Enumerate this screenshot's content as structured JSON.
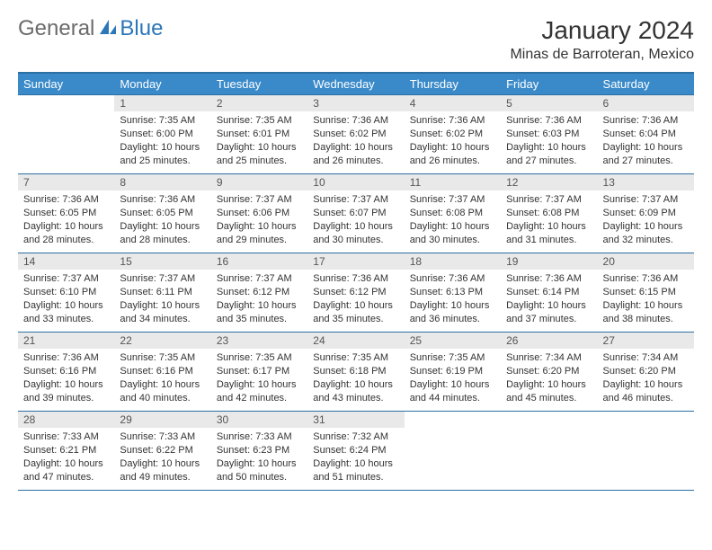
{
  "logo": {
    "general": "General",
    "blue": "Blue"
  },
  "title": "January 2024",
  "location": "Minas de Barroteran, Mexico",
  "colors": {
    "header_bg": "#3a8ac9",
    "header_border": "#2b6fa3",
    "daynum_bg": "#e9e9e9",
    "text": "#333333"
  },
  "weekdays": [
    "Sunday",
    "Monday",
    "Tuesday",
    "Wednesday",
    "Thursday",
    "Friday",
    "Saturday"
  ],
  "weeks": [
    [
      null,
      {
        "n": "1",
        "sr": "Sunrise: 7:35 AM",
        "ss": "Sunset: 6:00 PM",
        "d1": "Daylight: 10 hours",
        "d2": "and 25 minutes."
      },
      {
        "n": "2",
        "sr": "Sunrise: 7:35 AM",
        "ss": "Sunset: 6:01 PM",
        "d1": "Daylight: 10 hours",
        "d2": "and 25 minutes."
      },
      {
        "n": "3",
        "sr": "Sunrise: 7:36 AM",
        "ss": "Sunset: 6:02 PM",
        "d1": "Daylight: 10 hours",
        "d2": "and 26 minutes."
      },
      {
        "n": "4",
        "sr": "Sunrise: 7:36 AM",
        "ss": "Sunset: 6:02 PM",
        "d1": "Daylight: 10 hours",
        "d2": "and 26 minutes."
      },
      {
        "n": "5",
        "sr": "Sunrise: 7:36 AM",
        "ss": "Sunset: 6:03 PM",
        "d1": "Daylight: 10 hours",
        "d2": "and 27 minutes."
      },
      {
        "n": "6",
        "sr": "Sunrise: 7:36 AM",
        "ss": "Sunset: 6:04 PM",
        "d1": "Daylight: 10 hours",
        "d2": "and 27 minutes."
      }
    ],
    [
      {
        "n": "7",
        "sr": "Sunrise: 7:36 AM",
        "ss": "Sunset: 6:05 PM",
        "d1": "Daylight: 10 hours",
        "d2": "and 28 minutes."
      },
      {
        "n": "8",
        "sr": "Sunrise: 7:36 AM",
        "ss": "Sunset: 6:05 PM",
        "d1": "Daylight: 10 hours",
        "d2": "and 28 minutes."
      },
      {
        "n": "9",
        "sr": "Sunrise: 7:37 AM",
        "ss": "Sunset: 6:06 PM",
        "d1": "Daylight: 10 hours",
        "d2": "and 29 minutes."
      },
      {
        "n": "10",
        "sr": "Sunrise: 7:37 AM",
        "ss": "Sunset: 6:07 PM",
        "d1": "Daylight: 10 hours",
        "d2": "and 30 minutes."
      },
      {
        "n": "11",
        "sr": "Sunrise: 7:37 AM",
        "ss": "Sunset: 6:08 PM",
        "d1": "Daylight: 10 hours",
        "d2": "and 30 minutes."
      },
      {
        "n": "12",
        "sr": "Sunrise: 7:37 AM",
        "ss": "Sunset: 6:08 PM",
        "d1": "Daylight: 10 hours",
        "d2": "and 31 minutes."
      },
      {
        "n": "13",
        "sr": "Sunrise: 7:37 AM",
        "ss": "Sunset: 6:09 PM",
        "d1": "Daylight: 10 hours",
        "d2": "and 32 minutes."
      }
    ],
    [
      {
        "n": "14",
        "sr": "Sunrise: 7:37 AM",
        "ss": "Sunset: 6:10 PM",
        "d1": "Daylight: 10 hours",
        "d2": "and 33 minutes."
      },
      {
        "n": "15",
        "sr": "Sunrise: 7:37 AM",
        "ss": "Sunset: 6:11 PM",
        "d1": "Daylight: 10 hours",
        "d2": "and 34 minutes."
      },
      {
        "n": "16",
        "sr": "Sunrise: 7:37 AM",
        "ss": "Sunset: 6:12 PM",
        "d1": "Daylight: 10 hours",
        "d2": "and 35 minutes."
      },
      {
        "n": "17",
        "sr": "Sunrise: 7:36 AM",
        "ss": "Sunset: 6:12 PM",
        "d1": "Daylight: 10 hours",
        "d2": "and 35 minutes."
      },
      {
        "n": "18",
        "sr": "Sunrise: 7:36 AM",
        "ss": "Sunset: 6:13 PM",
        "d1": "Daylight: 10 hours",
        "d2": "and 36 minutes."
      },
      {
        "n": "19",
        "sr": "Sunrise: 7:36 AM",
        "ss": "Sunset: 6:14 PM",
        "d1": "Daylight: 10 hours",
        "d2": "and 37 minutes."
      },
      {
        "n": "20",
        "sr": "Sunrise: 7:36 AM",
        "ss": "Sunset: 6:15 PM",
        "d1": "Daylight: 10 hours",
        "d2": "and 38 minutes."
      }
    ],
    [
      {
        "n": "21",
        "sr": "Sunrise: 7:36 AM",
        "ss": "Sunset: 6:16 PM",
        "d1": "Daylight: 10 hours",
        "d2": "and 39 minutes."
      },
      {
        "n": "22",
        "sr": "Sunrise: 7:35 AM",
        "ss": "Sunset: 6:16 PM",
        "d1": "Daylight: 10 hours",
        "d2": "and 40 minutes."
      },
      {
        "n": "23",
        "sr": "Sunrise: 7:35 AM",
        "ss": "Sunset: 6:17 PM",
        "d1": "Daylight: 10 hours",
        "d2": "and 42 minutes."
      },
      {
        "n": "24",
        "sr": "Sunrise: 7:35 AM",
        "ss": "Sunset: 6:18 PM",
        "d1": "Daylight: 10 hours",
        "d2": "and 43 minutes."
      },
      {
        "n": "25",
        "sr": "Sunrise: 7:35 AM",
        "ss": "Sunset: 6:19 PM",
        "d1": "Daylight: 10 hours",
        "d2": "and 44 minutes."
      },
      {
        "n": "26",
        "sr": "Sunrise: 7:34 AM",
        "ss": "Sunset: 6:20 PM",
        "d1": "Daylight: 10 hours",
        "d2": "and 45 minutes."
      },
      {
        "n": "27",
        "sr": "Sunrise: 7:34 AM",
        "ss": "Sunset: 6:20 PM",
        "d1": "Daylight: 10 hours",
        "d2": "and 46 minutes."
      }
    ],
    [
      {
        "n": "28",
        "sr": "Sunrise: 7:33 AM",
        "ss": "Sunset: 6:21 PM",
        "d1": "Daylight: 10 hours",
        "d2": "and 47 minutes."
      },
      {
        "n": "29",
        "sr": "Sunrise: 7:33 AM",
        "ss": "Sunset: 6:22 PM",
        "d1": "Daylight: 10 hours",
        "d2": "and 49 minutes."
      },
      {
        "n": "30",
        "sr": "Sunrise: 7:33 AM",
        "ss": "Sunset: 6:23 PM",
        "d1": "Daylight: 10 hours",
        "d2": "and 50 minutes."
      },
      {
        "n": "31",
        "sr": "Sunrise: 7:32 AM",
        "ss": "Sunset: 6:24 PM",
        "d1": "Daylight: 10 hours",
        "d2": "and 51 minutes."
      },
      null,
      null,
      null
    ]
  ]
}
